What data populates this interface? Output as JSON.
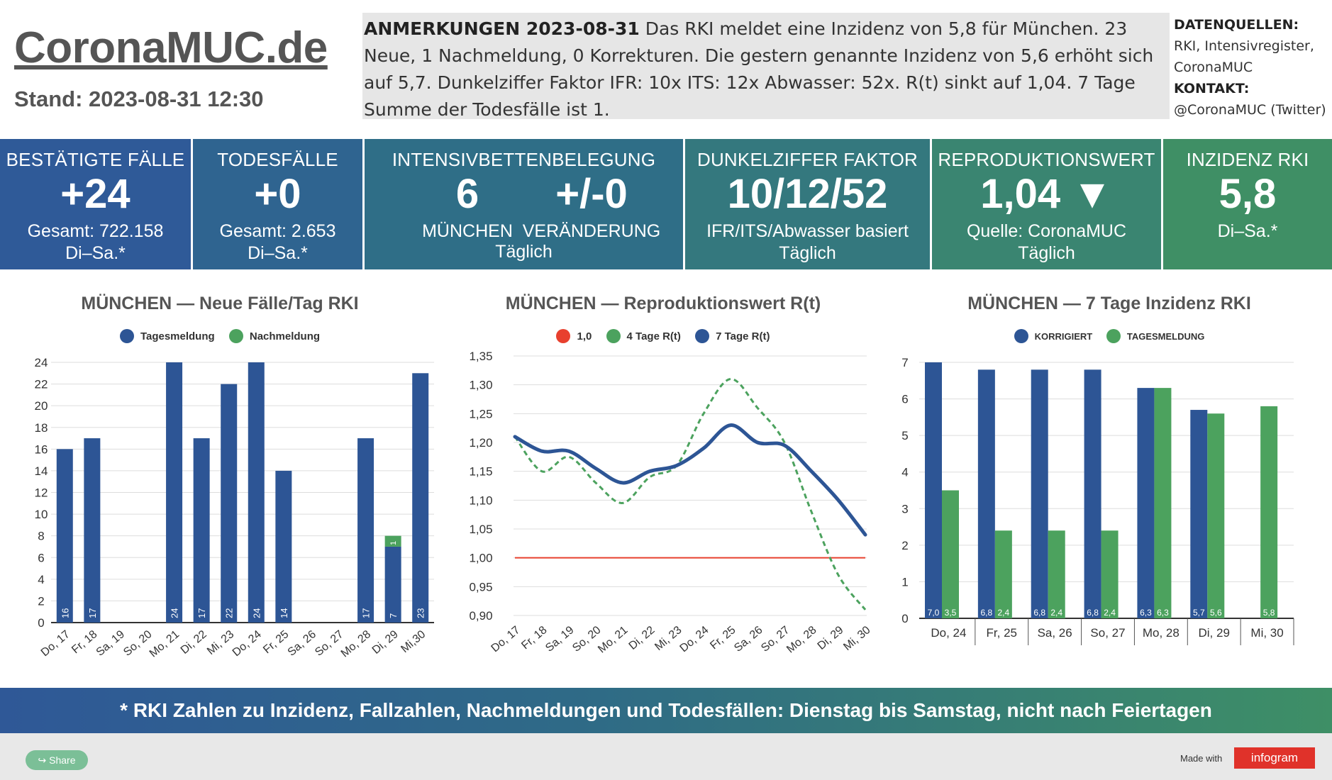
{
  "header": {
    "site_title": "CoronaMUC.de",
    "stand": "Stand: 2023-08-31 12:30",
    "notes_label": "ANMERKUNGEN 2023-08-31",
    "notes_text": " Das RKI meldet eine Inzidenz von 5,8 für München. 23 Neue, 1 Nachmeldung, 0 Korrekturen. Die gestern genannte Inzidenz von 5,6 erhöht sich auf 5,7. Dunkelziffer Faktor IFR: 10x ITS: 12x Abwasser: 52x. R(t) sinkt auf 1,04. 7 Tage Summe der Todesfälle ist 1.",
    "sources_label": "DATENQUELLEN:",
    "sources_text1": "RKI, Intensivregister,",
    "sources_text2": "CoronaMUC",
    "contact_label": "KONTAKT:",
    "contact_text": "@CoronaMUC (Twitter)"
  },
  "kpis": {
    "cases": {
      "title": "BESTÄTIGTE FÄLLE",
      "value": "+24",
      "sub1": "Gesamt: 722.158",
      "sub2": "Di–Sa.*",
      "color": "#2f5a98"
    },
    "deaths": {
      "title": "TODESFÄLLE",
      "value": "+0",
      "sub1": "Gesamt: 2.653",
      "sub2": "Di–Sa.*",
      "color": "#2f6490"
    },
    "icu": {
      "title": "INTENSIVBETTENBELEGUNG",
      "value_a": "6",
      "label_a": "MÜNCHEN",
      "value_b": "+/-0",
      "label_b": "VERÄNDERUNG",
      "sub2": "Täglich",
      "color": "#2f6e87"
    },
    "dark": {
      "title": "DUNKELZIFFER FAKTOR",
      "value": "10/12/52",
      "sub1": "IFR/ITS/Abwasser basiert",
      "sub2": "Täglich",
      "color": "#34787e"
    },
    "repro": {
      "title": "REPRODUKTIONSWERT",
      "value": "1,04 ▼",
      "sub1": "Quelle: CoronaMUC",
      "sub2": "Täglich",
      "color": "#3a8571"
    },
    "incidence": {
      "title": "INZIDENZ RKI",
      "value": "5,8",
      "sub1": "Di–Sa.*",
      "color": "#3f8f65"
    }
  },
  "charts": {
    "c1_title": "MÜNCHEN — Neue Fälle/Tag RKI",
    "c1_legend_a": "Tagesmeldung",
    "c1_legend_b": "Nachmeldung",
    "c2_title": "MÜNCHEN — Reproduktionswert R(t)",
    "c2_legend_a": "1,0",
    "c2_legend_b": "4 Tage R(t)",
    "c2_legend_c": "7 Tage R(t)",
    "c3_title": "MÜNCHEN — 7 Tage Inzidenz RKI",
    "c3_legend_a": "KORRIGIERT",
    "c3_legend_b": "TAGESMELDUNG"
  },
  "colors": {
    "blue": "#2d5595",
    "green": "#4ca25e",
    "red": "#e8402e",
    "grid": "#dddddd"
  },
  "chart_data": [
    {
      "type": "bar",
      "title": "MÜNCHEN — Neue Fälle/Tag RKI",
      "categories": [
        "Do, 17",
        "Fr, 18",
        "Sa, 19",
        "So, 20",
        "Mo, 21",
        "Di, 22",
        "Mi, 23",
        "Do, 24",
        "Fr, 25",
        "Sa, 26",
        "So, 27",
        "Mo, 28",
        "Di, 29",
        "Mi,30"
      ],
      "series": [
        {
          "name": "Tagesmeldung",
          "values": [
            16,
            17,
            0,
            0,
            24,
            17,
            22,
            24,
            14,
            0,
            0,
            17,
            7,
            23
          ],
          "labels": [
            "16",
            "17",
            "",
            "",
            "24",
            "17",
            "22",
            "24",
            "14",
            "",
            "",
            "17",
            "7",
            "23"
          ]
        },
        {
          "name": "Nachmeldung",
          "values": [
            0,
            0,
            0,
            0,
            0,
            0,
            0,
            0,
            0,
            0,
            0,
            0,
            1,
            0
          ],
          "labels": [
            "",
            "",
            "",
            "",
            "",
            "",
            "",
            "",
            "",
            "",
            "",
            "",
            "1",
            ""
          ]
        }
      ],
      "stacked": true,
      "yticks": [
        "0",
        "2",
        "4",
        "6",
        "8",
        "10",
        "12",
        "14",
        "16",
        "18",
        "20",
        "22",
        "24"
      ],
      "ylim": [
        0,
        24
      ]
    },
    {
      "type": "line",
      "title": "MÜNCHEN — Reproduktionswert R(t)",
      "categories": [
        "Do, 17",
        "Fr, 18",
        "Sa, 19",
        "So, 20",
        "Mo, 21",
        "Di, 22",
        "Mi, 23",
        "Do, 24",
        "Fr, 25",
        "Sa, 26",
        "So, 27",
        "Mo, 28",
        "Di, 29",
        "Mi, 30"
      ],
      "series": [
        {
          "name": "1,0",
          "values": [
            1.0,
            1.0,
            1.0,
            1.0,
            1.0,
            1.0,
            1.0,
            1.0,
            1.0,
            1.0,
            1.0,
            1.0,
            1.0,
            1.0
          ]
        },
        {
          "name": "4 Tage R(t)",
          "values": [
            1.21,
            1.15,
            1.175,
            1.13,
            1.095,
            1.14,
            1.16,
            1.25,
            1.31,
            1.26,
            1.2,
            1.08,
            0.97,
            0.91
          ]
        },
        {
          "name": "7 Tage R(t)",
          "values": [
            1.21,
            1.185,
            1.185,
            1.155,
            1.13,
            1.15,
            1.16,
            1.19,
            1.23,
            1.2,
            1.195,
            1.15,
            1.1,
            1.04
          ]
        }
      ],
      "yticks": [
        "0,90",
        "0,95",
        "1,00",
        "1,05",
        "1,10",
        "1,15",
        "1,20",
        "1,25",
        "1,30",
        "1,35"
      ],
      "ylim": [
        0.9,
        1.35
      ]
    },
    {
      "type": "bar",
      "title": "MÜNCHEN — 7 Tage Inzidenz RKI",
      "categories": [
        "Do, 24",
        "Fr, 25",
        "Sa, 26",
        "So, 27",
        "Mo, 28",
        "Di, 29",
        "Mi, 30"
      ],
      "series": [
        {
          "name": "KORRIGIERT",
          "values": [
            7.0,
            6.8,
            6.8,
            6.8,
            6.3,
            5.7,
            null
          ],
          "labels": [
            "7,0",
            "6,8",
            "6,8",
            "6,8",
            "6,3",
            "5,7",
            ""
          ]
        },
        {
          "name": "TAGESMELDUNG",
          "values": [
            3.5,
            2.4,
            2.4,
            2.4,
            6.3,
            5.6,
            5.8
          ],
          "labels": [
            "3,5",
            "2,4",
            "2,4",
            "2,4",
            "6,3",
            "5,6",
            "5,8"
          ]
        }
      ],
      "yticks": [
        "0",
        "1",
        "2",
        "3",
        "4",
        "5",
        "6",
        "7"
      ],
      "ylim": [
        0,
        7
      ]
    }
  ],
  "footer": {
    "banner": "* RKI Zahlen zu Inzidenz, Fallzahlen, Nachmeldungen und Todesfällen: Dienstag bis Samstag, nicht nach Feiertagen",
    "share": "Share",
    "made_with": "Made with",
    "brand": "infogram"
  }
}
